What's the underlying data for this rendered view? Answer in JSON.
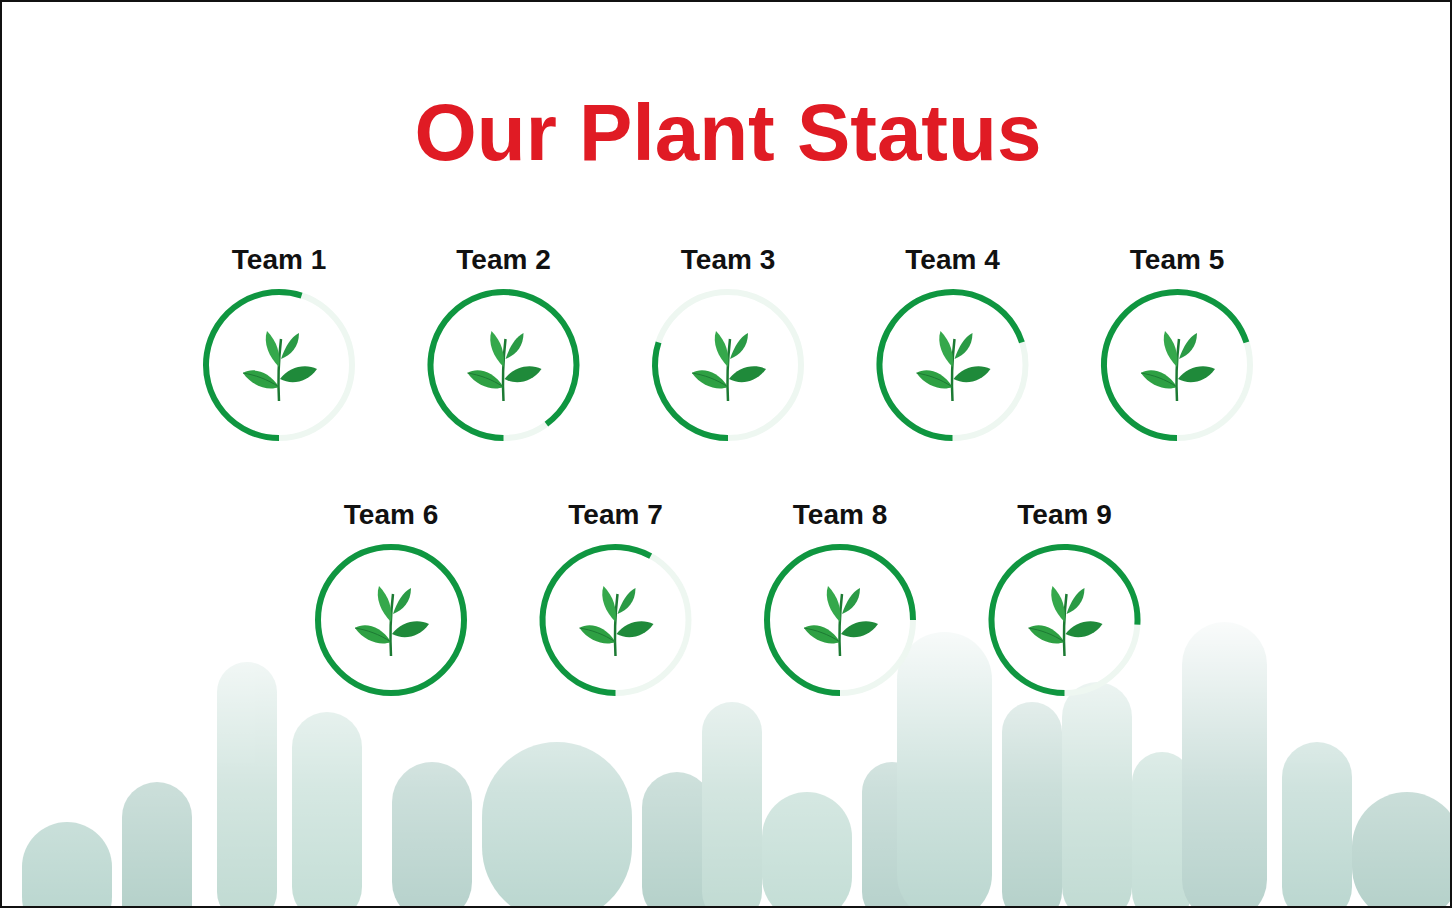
{
  "chart_data": {
    "type": "progress_ring",
    "title": "Our Plant Status",
    "categories": [
      "Team 1",
      "Team 2",
      "Team 3",
      "Team 4",
      "Team 5",
      "Team 6",
      "Team 7",
      "Team 8",
      "Team 9"
    ],
    "values": [
      55,
      90,
      30,
      70,
      70,
      100,
      58,
      75,
      76
    ],
    "ylim": [
      0,
      100
    ],
    "color": "#0f9640"
  }
}
